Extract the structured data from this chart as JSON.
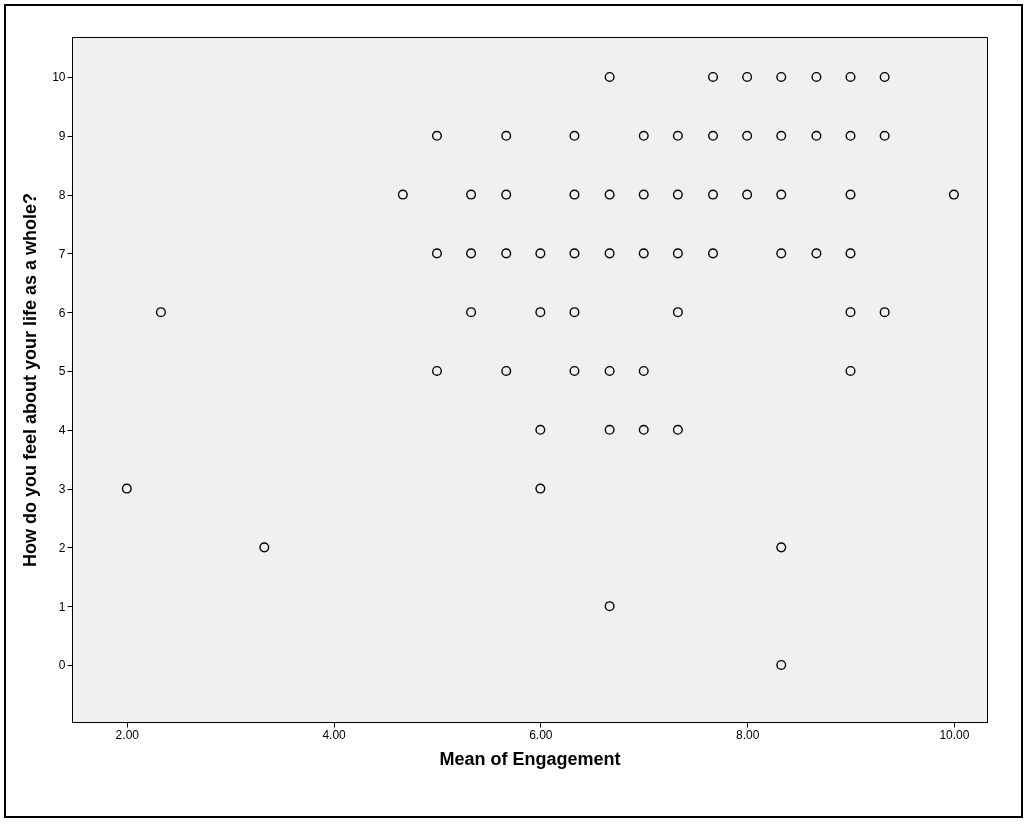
{
  "chart_data": {
    "type": "scatter",
    "xlabel": "Mean of Engagement",
    "ylabel": "How do you feel about your life as a whole?",
    "xlim": [
      1.47,
      10.32
    ],
    "ylim": [
      -0.97,
      10.68
    ],
    "xticks": [
      {
        "value": 2,
        "label": "2.00"
      },
      {
        "value": 4,
        "label": "4.00"
      },
      {
        "value": 6,
        "label": "6.00"
      },
      {
        "value": 8,
        "label": "8.00"
      },
      {
        "value": 10,
        "label": "10.00"
      }
    ],
    "yticks": [
      0,
      1,
      2,
      3,
      4,
      5,
      6,
      7,
      8,
      9,
      10
    ],
    "marker": "circle",
    "grid": false,
    "series": [
      {
        "color": "#000000",
        "x": [
          6.67,
          7.67,
          8.0,
          8.33,
          8.67,
          9.0,
          9.33,
          5.0,
          5.67,
          6.33,
          7.0,
          7.33,
          7.67,
          8.0,
          8.33,
          8.67,
          9.0,
          9.33,
          4.67,
          5.33,
          5.67,
          6.33,
          6.67,
          7.0,
          7.33,
          7.67,
          8.0,
          8.33,
          9.0,
          10.0,
          5.0,
          5.33,
          5.67,
          6.0,
          6.33,
          6.67,
          7.0,
          7.33,
          7.67,
          8.33,
          8.67,
          9.0,
          2.33,
          5.33,
          6.0,
          6.33,
          7.33,
          9.0,
          9.33,
          5.0,
          5.67,
          6.33,
          6.67,
          7.0,
          9.0,
          6.0,
          6.67,
          7.0,
          7.33,
          2.0,
          6.0,
          3.33,
          8.33,
          6.67,
          8.33
        ],
        "values": [
          10,
          10,
          10,
          10,
          10,
          10,
          10,
          9,
          9,
          9,
          9,
          9,
          9,
          9,
          9,
          9,
          9,
          9,
          8,
          8,
          8,
          8,
          8,
          8,
          8,
          8,
          8,
          8,
          8,
          8,
          7,
          7,
          7,
          7,
          7,
          7,
          7,
          7,
          7,
          7,
          7,
          7,
          6,
          6,
          6,
          6,
          6,
          6,
          6,
          5,
          5,
          5,
          5,
          5,
          5,
          4,
          4,
          4,
          4,
          3,
          3,
          2,
          2,
          1,
          0
        ]
      }
    ]
  }
}
